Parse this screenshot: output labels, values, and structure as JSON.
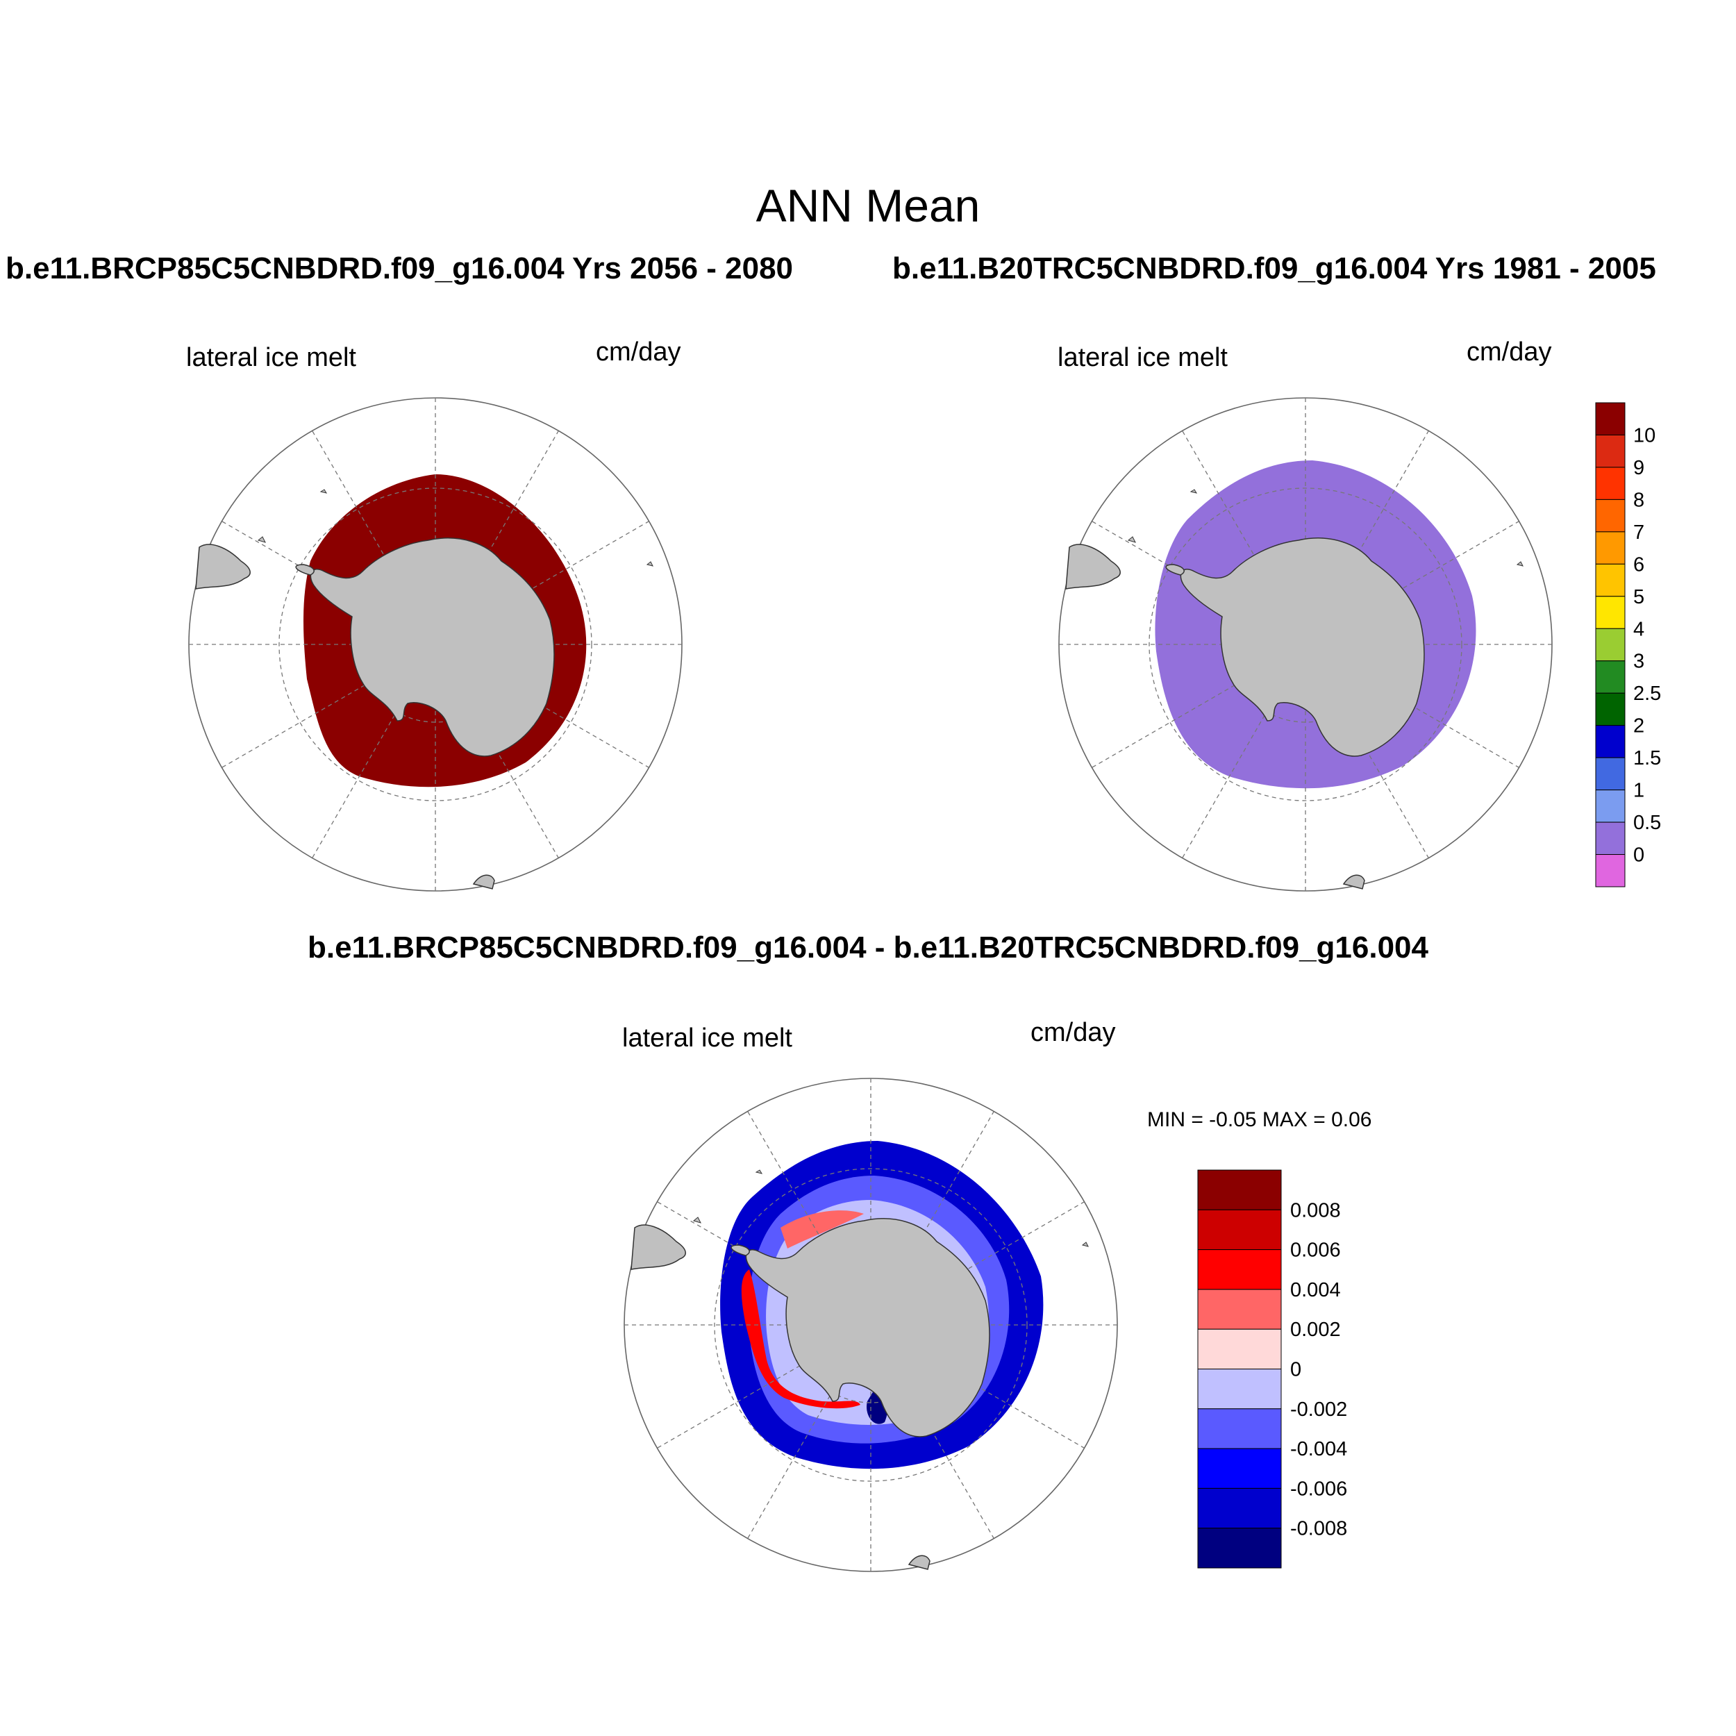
{
  "title": "ANN Mean",
  "top_left": {
    "case": "b.e11.BRCP85C5CNBDRD.f09_g16.004  Yrs 2056 - 2080",
    "variable": "lateral ice melt",
    "units": "cm/day",
    "fill_color": "#8b0000"
  },
  "top_right": {
    "case": "b.e11.B20TRC5CNBDRD.f09_g16.004  Yrs 1981 - 2005",
    "variable": "lateral ice melt",
    "units": "cm/day",
    "fill_color": "#9370db"
  },
  "bottom": {
    "case": "b.e11.BRCP85C5CNBDRD.f09_g16.004 - b.e11.B20TRC5CNBDRD.f09_g16.004",
    "variable": "lateral ice melt",
    "units": "cm/day",
    "minmax": "MIN =  -0.05 MAX =   0.06"
  },
  "colorbar_main": {
    "labels": [
      "10",
      "9",
      "8",
      "7",
      "6",
      "5",
      "4",
      "3",
      "2.5",
      "2",
      "1.5",
      "1",
      "0.5",
      "0"
    ],
    "colors": [
      "#8b0000",
      "#dc2a12",
      "#ff3300",
      "#ff6600",
      "#ff9900",
      "#ffc400",
      "#ffe600",
      "#9acd32",
      "#228b22",
      "#006400",
      "#0000cd",
      "#4169e1",
      "#7b9cf0",
      "#9370db",
      "#e066e0"
    ]
  },
  "colorbar_diff": {
    "labels": [
      "0.008",
      "0.006",
      "0.004",
      "0.002",
      "0",
      "-0.002",
      "-0.004",
      "-0.006",
      "-0.008"
    ],
    "colors": [
      "#8b0000",
      "#cd0000",
      "#ff0000",
      "#ff6666",
      "#ffd9d9",
      "#c0c0ff",
      "#5a5aff",
      "#0000ff",
      "#0000cd",
      "#000080"
    ]
  }
}
